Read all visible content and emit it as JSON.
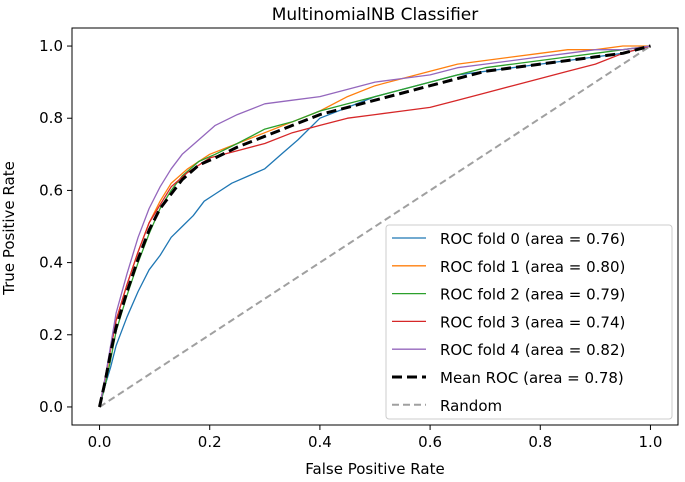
{
  "chart_data": {
    "type": "line",
    "title": "MultinomialNB Classifier",
    "xlabel": "False Positive Rate",
    "ylabel": "True Positive Rate",
    "xlim": [
      -0.05,
      1.05
    ],
    "ylim": [
      -0.05,
      1.05
    ],
    "xticks": [
      0.0,
      0.2,
      0.4,
      0.6,
      0.8,
      1.0
    ],
    "yticks": [
      0.0,
      0.2,
      0.4,
      0.6,
      0.8,
      1.0
    ],
    "xtick_labels": [
      "0.0",
      "0.2",
      "0.4",
      "0.6",
      "0.8",
      "1.0"
    ],
    "ytick_labels": [
      "0.0",
      "0.2",
      "0.4",
      "0.6",
      "0.8",
      "1.0"
    ],
    "legend_position": "lower-right",
    "series": [
      {
        "name": "ROC fold 0 (area = 0.76)",
        "color": "#1f77b4",
        "style": "solid",
        "x": [
          0,
          0.01,
          0.02,
          0.03,
          0.05,
          0.07,
          0.09,
          0.11,
          0.13,
          0.15,
          0.17,
          0.19,
          0.21,
          0.24,
          0.27,
          0.3,
          0.33,
          0.36,
          0.4,
          0.45,
          0.5,
          0.55,
          0.6,
          0.65,
          0.7,
          0.75,
          0.8,
          0.85,
          0.9,
          0.95,
          1.0
        ],
        "y": [
          0,
          0.06,
          0.11,
          0.17,
          0.25,
          0.32,
          0.38,
          0.42,
          0.47,
          0.5,
          0.53,
          0.57,
          0.59,
          0.62,
          0.64,
          0.66,
          0.7,
          0.74,
          0.8,
          0.83,
          0.86,
          0.88,
          0.9,
          0.92,
          0.93,
          0.94,
          0.95,
          0.96,
          0.97,
          0.98,
          1.0
        ]
      },
      {
        "name": "ROC fold 1 (area = 0.80)",
        "color": "#ff7f0e",
        "style": "solid",
        "x": [
          0,
          0.01,
          0.02,
          0.03,
          0.05,
          0.07,
          0.09,
          0.11,
          0.13,
          0.16,
          0.2,
          0.25,
          0.3,
          0.35,
          0.4,
          0.45,
          0.5,
          0.55,
          0.6,
          0.65,
          0.7,
          0.75,
          0.8,
          0.85,
          0.9,
          0.95,
          1.0
        ],
        "y": [
          0,
          0.07,
          0.16,
          0.24,
          0.34,
          0.43,
          0.51,
          0.57,
          0.62,
          0.66,
          0.7,
          0.73,
          0.76,
          0.79,
          0.82,
          0.86,
          0.89,
          0.91,
          0.93,
          0.95,
          0.96,
          0.97,
          0.98,
          0.99,
          0.99,
          1.0,
          1.0
        ]
      },
      {
        "name": "ROC fold 2 (area = 0.79)",
        "color": "#2ca02c",
        "style": "solid",
        "x": [
          0,
          0.01,
          0.02,
          0.03,
          0.05,
          0.07,
          0.09,
          0.11,
          0.13,
          0.15,
          0.18,
          0.21,
          0.25,
          0.3,
          0.35,
          0.4,
          0.45,
          0.5,
          0.55,
          0.6,
          0.65,
          0.7,
          0.75,
          0.8,
          0.85,
          0.9,
          0.95,
          1.0
        ],
        "y": [
          0,
          0.06,
          0.13,
          0.21,
          0.31,
          0.4,
          0.48,
          0.55,
          0.6,
          0.64,
          0.68,
          0.7,
          0.73,
          0.77,
          0.79,
          0.82,
          0.84,
          0.86,
          0.88,
          0.9,
          0.92,
          0.94,
          0.95,
          0.96,
          0.97,
          0.98,
          0.99,
          1.0
        ]
      },
      {
        "name": "ROC fold 3 (area = 0.74)",
        "color": "#d62728",
        "style": "solid",
        "x": [
          0,
          0.01,
          0.02,
          0.03,
          0.05,
          0.07,
          0.09,
          0.11,
          0.13,
          0.16,
          0.2,
          0.25,
          0.3,
          0.35,
          0.4,
          0.45,
          0.5,
          0.55,
          0.6,
          0.65,
          0.7,
          0.75,
          0.8,
          0.85,
          0.9,
          0.95,
          1.0
        ],
        "y": [
          0,
          0.08,
          0.16,
          0.24,
          0.34,
          0.43,
          0.51,
          0.56,
          0.61,
          0.65,
          0.69,
          0.71,
          0.73,
          0.76,
          0.78,
          0.8,
          0.81,
          0.82,
          0.83,
          0.85,
          0.87,
          0.89,
          0.91,
          0.93,
          0.95,
          0.98,
          1.0
        ]
      },
      {
        "name": "ROC fold 4 (area = 0.82)",
        "color": "#9467bd",
        "style": "solid",
        "x": [
          0,
          0.01,
          0.02,
          0.03,
          0.05,
          0.07,
          0.09,
          0.11,
          0.13,
          0.15,
          0.18,
          0.21,
          0.25,
          0.3,
          0.35,
          0.4,
          0.45,
          0.5,
          0.55,
          0.6,
          0.65,
          0.7,
          0.75,
          0.8,
          0.85,
          0.9,
          0.95,
          1.0
        ],
        "y": [
          0,
          0.08,
          0.17,
          0.26,
          0.37,
          0.47,
          0.55,
          0.61,
          0.66,
          0.7,
          0.74,
          0.78,
          0.81,
          0.84,
          0.85,
          0.86,
          0.88,
          0.9,
          0.91,
          0.92,
          0.94,
          0.95,
          0.96,
          0.97,
          0.98,
          0.99,
          0.99,
          1.0
        ]
      },
      {
        "name": "Mean ROC (area = 0.78)",
        "color": "#000000",
        "style": "dashed-bold",
        "x": [
          0,
          0.01,
          0.02,
          0.03,
          0.05,
          0.07,
          0.09,
          0.11,
          0.13,
          0.15,
          0.18,
          0.21,
          0.25,
          0.3,
          0.35,
          0.4,
          0.45,
          0.5,
          0.55,
          0.6,
          0.65,
          0.7,
          0.75,
          0.8,
          0.85,
          0.9,
          0.95,
          1.0
        ],
        "y": [
          0,
          0.07,
          0.15,
          0.22,
          0.32,
          0.41,
          0.49,
          0.55,
          0.59,
          0.63,
          0.67,
          0.69,
          0.72,
          0.75,
          0.78,
          0.81,
          0.83,
          0.85,
          0.87,
          0.89,
          0.91,
          0.93,
          0.94,
          0.95,
          0.96,
          0.97,
          0.98,
          1.0
        ]
      },
      {
        "name": "Random",
        "color": "#a0a0a0",
        "style": "dashed",
        "x": [
          0,
          1
        ],
        "y": [
          0,
          1
        ]
      }
    ]
  }
}
